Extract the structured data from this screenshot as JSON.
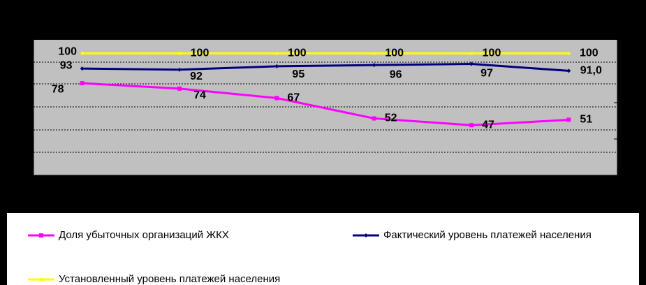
{
  "chart_data": {
    "type": "line",
    "categories": [
      null,
      null,
      null,
      null,
      null,
      null
    ],
    "ylim": [
      10,
      110
    ],
    "y2lim": [
      0,
      118
    ],
    "series": [
      {
        "name": "Доля убыточных организаций ЖКХ",
        "color": "#ff00ff",
        "values": [
          78,
          74,
          67,
          52,
          47,
          51
        ]
      },
      {
        "name": "Фактический уровень платежей населения",
        "color": "#000080",
        "axis": "y2",
        "values": [
          93,
          92,
          95,
          96,
          97,
          91
        ],
        "value_labels": [
          "93",
          "92",
          "95",
          "96",
          "97",
          "91,0"
        ]
      },
      {
        "name": "Установленный уровень платежей населения",
        "color": "#ffff00",
        "values": [
          100,
          100,
          100,
          100,
          100,
          100
        ]
      }
    ]
  }
}
